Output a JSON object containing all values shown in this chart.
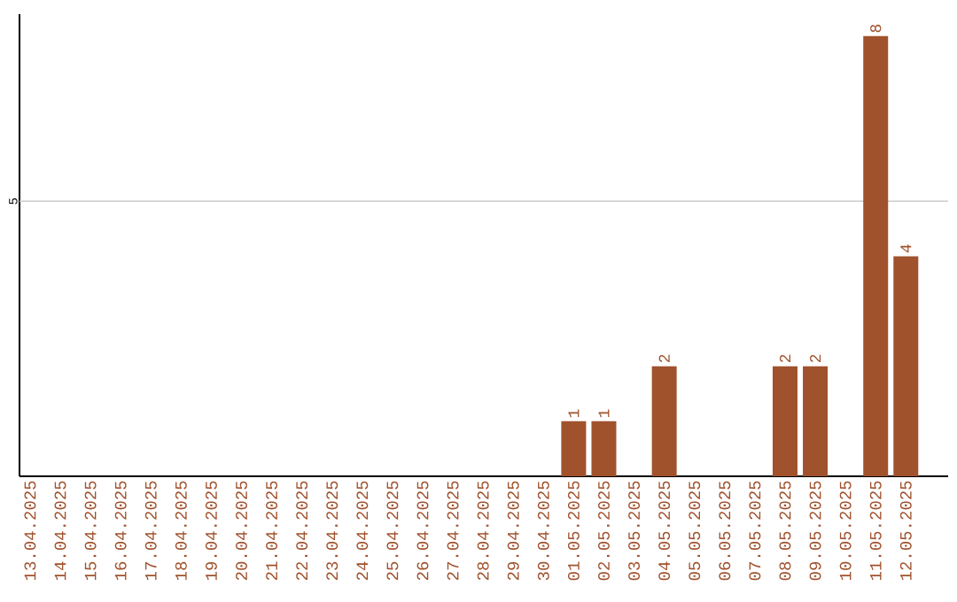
{
  "chart_data": {
    "type": "bar",
    "categories": [
      "13.04.2025",
      "14.04.2025",
      "15.04.2025",
      "16.04.2025",
      "17.04.2025",
      "18.04.2025",
      "19.04.2025",
      "20.04.2025",
      "21.04.2025",
      "22.04.2025",
      "23.04.2025",
      "24.04.2025",
      "25.04.2025",
      "26.04.2025",
      "27.04.2025",
      "28.04.2025",
      "29.04.2025",
      "30.04.2025",
      "01.05.2025",
      "02.05.2025",
      "03.05.2025",
      "04.05.2025",
      "05.05.2025",
      "06.05.2025",
      "07.05.2025",
      "08.05.2025",
      "09.05.2025",
      "10.05.2025",
      "11.05.2025",
      "12.05.2025"
    ],
    "values": [
      null,
      null,
      null,
      null,
      null,
      null,
      null,
      null,
      null,
      null,
      null,
      null,
      null,
      null,
      null,
      null,
      null,
      null,
      1,
      1,
      null,
      2,
      null,
      null,
      null,
      2,
      2,
      null,
      8,
      4
    ],
    "data_labels": true,
    "color": "#a0522d",
    "ylim": [
      0,
      8.4
    ],
    "ref_lines": [
      {
        "axis": "y",
        "value": 5,
        "label": "5",
        "color": "#cccccc"
      }
    ]
  }
}
